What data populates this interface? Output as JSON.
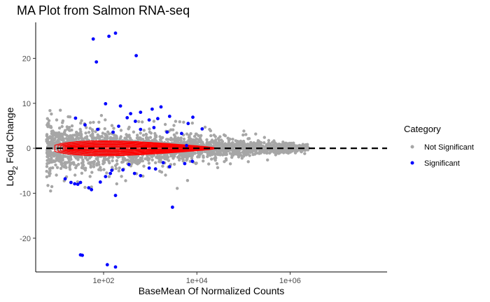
{
  "chart_data": {
    "type": "scatter",
    "title": "MA Plot from Salmon RNA-seq",
    "xlabel": "BaseMean Of Normalized Counts",
    "ylabel": "Log2 Fold Change",
    "x_scale": "log10",
    "xlim": [
      3.5,
      120000000
    ],
    "ylim": [
      -27.5,
      28
    ],
    "x_ticks": [
      {
        "value": 100,
        "label": "1e+02"
      },
      {
        "value": 10000,
        "label": "1e+04"
      },
      {
        "value": 1000000,
        "label": "1e+06"
      }
    ],
    "y_ticks": [
      {
        "value": -20,
        "label": "-20"
      },
      {
        "value": -10,
        "label": "-10"
      },
      {
        "value": 0,
        "label": "0"
      },
      {
        "value": 10,
        "label": "10"
      },
      {
        "value": 20,
        "label": "20"
      }
    ],
    "reference_line": {
      "y": 0,
      "style": "dashed",
      "color": "#000000"
    },
    "density_contour_color": "#ff0000",
    "grid": false,
    "legend": {
      "title": "Category",
      "position": "right",
      "entries": [
        {
          "label": "Not Significant",
          "color": "#a6a6a6"
        },
        {
          "label": "Significant",
          "color": "#0000ff"
        }
      ]
    },
    "series": [
      {
        "name": "Significant",
        "color": "#0000ff",
        "points": [
          [
            60,
            24.3
          ],
          [
            130,
            24.9
          ],
          [
            180,
            25.6
          ],
          [
            70,
            19.2
          ],
          [
            500,
            20.6
          ],
          [
            32,
            -23.7
          ],
          [
            35,
            -23.8
          ],
          [
            120,
            -25.9
          ],
          [
            180,
            -26.4
          ],
          [
            3000,
            -13.1
          ],
          [
            180,
            -10.5
          ],
          [
            6000,
            0.6
          ],
          [
            110,
            9.9
          ],
          [
            230,
            9.4
          ],
          [
            380,
            7.7
          ],
          [
            620,
            8.0
          ],
          [
            1100,
            8.7
          ],
          [
            1700,
            9.2
          ],
          [
            2600,
            7.1
          ],
          [
            320,
            6.8
          ],
          [
            480,
            6.0
          ],
          [
            950,
            6.3
          ],
          [
            1450,
            6.6
          ],
          [
            6500,
            5.5
          ],
          [
            8200,
            6.9
          ],
          [
            13000,
            4.3
          ],
          [
            25,
            6.7
          ],
          [
            40,
            5.2
          ],
          [
            75,
            4.2
          ],
          [
            160,
            3.6
          ],
          [
            210,
            4.9
          ],
          [
            620,
            4.2
          ],
          [
            1200,
            4.6
          ],
          [
            2300,
            3.6
          ],
          [
            4700,
            3.3
          ],
          [
            15,
            -6.8
          ],
          [
            20,
            -7.6
          ],
          [
            24,
            -7.9
          ],
          [
            28,
            -8.0
          ],
          [
            32,
            -7.6
          ],
          [
            48,
            -8.8
          ],
          [
            55,
            -9.2
          ],
          [
            85,
            -7.5
          ],
          [
            110,
            -6.3
          ],
          [
            140,
            -5.6
          ],
          [
            260,
            -4.8
          ],
          [
            460,
            -5.6
          ],
          [
            620,
            -6.1
          ],
          [
            950,
            -4.4
          ],
          [
            1300,
            -4.6
          ],
          [
            1900,
            -3.2
          ],
          [
            2600,
            -4.1
          ],
          [
            5500,
            -3.4
          ],
          [
            8000,
            -2.9
          ],
          [
            150,
            -4.9
          ],
          [
            350,
            -3.6
          ]
        ]
      }
    ]
  }
}
